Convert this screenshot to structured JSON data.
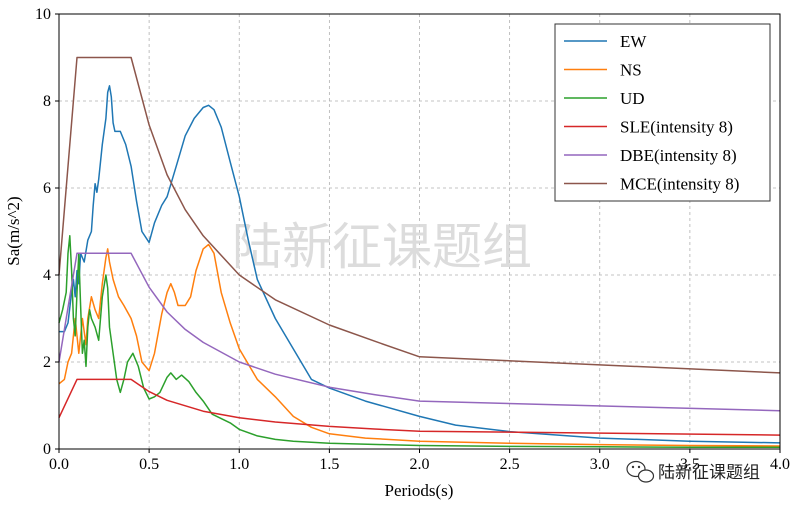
{
  "chart_data": {
    "type": "line",
    "xlabel": "Periods(s)",
    "ylabel": "Sa(m/s^2)",
    "xlim": [
      0,
      4.0
    ],
    "ylim": [
      0,
      10
    ],
    "xticks": [
      "0.0",
      "0.5",
      "1.0",
      "1.5",
      "2.0",
      "2.5",
      "3.0",
      "3.5",
      "4.0"
    ],
    "yticks": [
      "0",
      "2",
      "4",
      "6",
      "8",
      "10"
    ],
    "grid": true,
    "legend_position": "top-right",
    "series": [
      {
        "name": "EW",
        "color": "#1f77b4",
        "points": [
          [
            0.0,
            2.7
          ],
          [
            0.03,
            2.7
          ],
          [
            0.05,
            2.9
          ],
          [
            0.07,
            3.6
          ],
          [
            0.08,
            3.9
          ],
          [
            0.09,
            3.5
          ],
          [
            0.1,
            4.1
          ],
          [
            0.11,
            3.8
          ],
          [
            0.12,
            4.5
          ],
          [
            0.14,
            4.3
          ],
          [
            0.16,
            4.8
          ],
          [
            0.18,
            5.0
          ],
          [
            0.19,
            5.6
          ],
          [
            0.2,
            6.1
          ],
          [
            0.21,
            5.9
          ],
          [
            0.22,
            6.2
          ],
          [
            0.24,
            7.0
          ],
          [
            0.26,
            7.6
          ],
          [
            0.27,
            8.2
          ],
          [
            0.28,
            8.35
          ],
          [
            0.29,
            8.1
          ],
          [
            0.3,
            7.5
          ],
          [
            0.31,
            7.3
          ],
          [
            0.34,
            7.3
          ],
          [
            0.37,
            7.0
          ],
          [
            0.4,
            6.5
          ],
          [
            0.43,
            5.7
          ],
          [
            0.46,
            5.0
          ],
          [
            0.5,
            4.75
          ],
          [
            0.53,
            5.2
          ],
          [
            0.57,
            5.6
          ],
          [
            0.6,
            5.8
          ],
          [
            0.65,
            6.5
          ],
          [
            0.7,
            7.2
          ],
          [
            0.75,
            7.6
          ],
          [
            0.8,
            7.85
          ],
          [
            0.83,
            7.9
          ],
          [
            0.86,
            7.8
          ],
          [
            0.9,
            7.4
          ],
          [
            0.95,
            6.6
          ],
          [
            1.0,
            5.8
          ],
          [
            1.05,
            4.8
          ],
          [
            1.1,
            3.9
          ],
          [
            1.2,
            3.0
          ],
          [
            1.3,
            2.3
          ],
          [
            1.4,
            1.6
          ],
          [
            1.5,
            1.4
          ],
          [
            1.7,
            1.1
          ],
          [
            2.0,
            0.75
          ],
          [
            2.2,
            0.55
          ],
          [
            2.5,
            0.4
          ],
          [
            3.0,
            0.25
          ],
          [
            3.5,
            0.18
          ],
          [
            4.0,
            0.14
          ]
        ]
      },
      {
        "name": "NS",
        "color": "#ff7f0e",
        "points": [
          [
            0.0,
            1.5
          ],
          [
            0.03,
            1.6
          ],
          [
            0.05,
            2.0
          ],
          [
            0.07,
            2.2
          ],
          [
            0.08,
            2.6
          ],
          [
            0.09,
            3.0
          ],
          [
            0.1,
            2.6
          ],
          [
            0.11,
            2.2
          ],
          [
            0.13,
            3.0
          ],
          [
            0.15,
            2.4
          ],
          [
            0.16,
            3.0
          ],
          [
            0.18,
            3.5
          ],
          [
            0.2,
            3.2
          ],
          [
            0.22,
            3.0
          ],
          [
            0.24,
            3.8
          ],
          [
            0.26,
            4.4
          ],
          [
            0.27,
            4.6
          ],
          [
            0.28,
            4.3
          ],
          [
            0.3,
            3.9
          ],
          [
            0.33,
            3.5
          ],
          [
            0.36,
            3.3
          ],
          [
            0.4,
            3.0
          ],
          [
            0.43,
            2.6
          ],
          [
            0.46,
            2.0
          ],
          [
            0.5,
            1.8
          ],
          [
            0.53,
            2.2
          ],
          [
            0.57,
            3.1
          ],
          [
            0.6,
            3.6
          ],
          [
            0.62,
            3.8
          ],
          [
            0.64,
            3.6
          ],
          [
            0.66,
            3.3
          ],
          [
            0.7,
            3.3
          ],
          [
            0.73,
            3.5
          ],
          [
            0.76,
            4.1
          ],
          [
            0.8,
            4.6
          ],
          [
            0.83,
            4.7
          ],
          [
            0.86,
            4.5
          ],
          [
            0.9,
            3.6
          ],
          [
            0.95,
            2.9
          ],
          [
            1.0,
            2.3
          ],
          [
            1.1,
            1.6
          ],
          [
            1.2,
            1.2
          ],
          [
            1.3,
            0.75
          ],
          [
            1.4,
            0.5
          ],
          [
            1.5,
            0.35
          ],
          [
            1.7,
            0.25
          ],
          [
            2.0,
            0.18
          ],
          [
            2.5,
            0.13
          ],
          [
            3.0,
            0.1
          ],
          [
            3.5,
            0.08
          ],
          [
            4.0,
            0.07
          ]
        ]
      },
      {
        "name": "UD",
        "color": "#2ca02c",
        "points": [
          [
            0.0,
            2.9
          ],
          [
            0.02,
            3.2
          ],
          [
            0.04,
            3.6
          ],
          [
            0.05,
            4.5
          ],
          [
            0.06,
            4.9
          ],
          [
            0.07,
            4.1
          ],
          [
            0.08,
            3.0
          ],
          [
            0.09,
            2.6
          ],
          [
            0.1,
            3.6
          ],
          [
            0.11,
            4.5
          ],
          [
            0.12,
            3.3
          ],
          [
            0.13,
            2.2
          ],
          [
            0.14,
            2.5
          ],
          [
            0.15,
            1.9
          ],
          [
            0.16,
            2.8
          ],
          [
            0.17,
            3.2
          ],
          [
            0.18,
            3.0
          ],
          [
            0.2,
            2.8
          ],
          [
            0.22,
            2.5
          ],
          [
            0.24,
            3.5
          ],
          [
            0.26,
            4.0
          ],
          [
            0.27,
            3.7
          ],
          [
            0.28,
            2.8
          ],
          [
            0.3,
            2.2
          ],
          [
            0.32,
            1.6
          ],
          [
            0.34,
            1.3
          ],
          [
            0.36,
            1.6
          ],
          [
            0.38,
            2.0
          ],
          [
            0.41,
            2.2
          ],
          [
            0.44,
            1.9
          ],
          [
            0.47,
            1.4
          ],
          [
            0.5,
            1.15
          ],
          [
            0.53,
            1.2
          ],
          [
            0.56,
            1.3
          ],
          [
            0.6,
            1.65
          ],
          [
            0.62,
            1.75
          ],
          [
            0.65,
            1.6
          ],
          [
            0.68,
            1.7
          ],
          [
            0.72,
            1.55
          ],
          [
            0.76,
            1.3
          ],
          [
            0.8,
            1.1
          ],
          [
            0.85,
            0.8
          ],
          [
            0.9,
            0.7
          ],
          [
            0.95,
            0.6
          ],
          [
            1.0,
            0.45
          ],
          [
            1.1,
            0.3
          ],
          [
            1.2,
            0.22
          ],
          [
            1.3,
            0.18
          ],
          [
            1.5,
            0.13
          ],
          [
            1.8,
            0.1
          ],
          [
            2.0,
            0.08
          ],
          [
            2.5,
            0.06
          ],
          [
            3.0,
            0.05
          ],
          [
            3.5,
            0.04
          ],
          [
            4.0,
            0.04
          ]
        ]
      },
      {
        "name": "SLE(intensity 8)",
        "color": "#d62728",
        "points": [
          [
            0.0,
            0.72
          ],
          [
            0.1,
            1.6
          ],
          [
            0.4,
            1.6
          ],
          [
            0.5,
            1.32
          ],
          [
            0.6,
            1.12
          ],
          [
            0.8,
            0.87
          ],
          [
            1.0,
            0.72
          ],
          [
            1.2,
            0.62
          ],
          [
            1.5,
            0.52
          ],
          [
            1.75,
            0.46
          ],
          [
            2.0,
            0.41
          ],
          [
            4.0,
            0.32
          ]
        ]
      },
      {
        "name": "DBE(intensity 8)",
        "color": "#9467bd",
        "points": [
          [
            0.0,
            2.0
          ],
          [
            0.1,
            4.5
          ],
          [
            0.4,
            4.5
          ],
          [
            0.5,
            3.72
          ],
          [
            0.6,
            3.15
          ],
          [
            0.7,
            2.75
          ],
          [
            0.8,
            2.45
          ],
          [
            1.0,
            2.0
          ],
          [
            1.2,
            1.72
          ],
          [
            1.5,
            1.42
          ],
          [
            1.75,
            1.25
          ],
          [
            2.0,
            1.1
          ],
          [
            4.0,
            0.88
          ]
        ]
      },
      {
        "name": "MCE(intensity 8)",
        "color": "#8c564b",
        "points": [
          [
            0.0,
            4.0
          ],
          [
            0.1,
            9.0
          ],
          [
            0.4,
            9.0
          ],
          [
            0.5,
            7.45
          ],
          [
            0.6,
            6.3
          ],
          [
            0.7,
            5.5
          ],
          [
            0.8,
            4.9
          ],
          [
            1.0,
            4.0
          ],
          [
            1.2,
            3.43
          ],
          [
            1.5,
            2.85
          ],
          [
            1.75,
            2.48
          ],
          [
            2.0,
            2.12
          ],
          [
            4.0,
            1.75
          ]
        ]
      }
    ]
  },
  "watermark": {
    "main_text": "陆新征课题组",
    "corner_text": "陆新征课题组",
    "corner_icon": "wechat-icon"
  }
}
